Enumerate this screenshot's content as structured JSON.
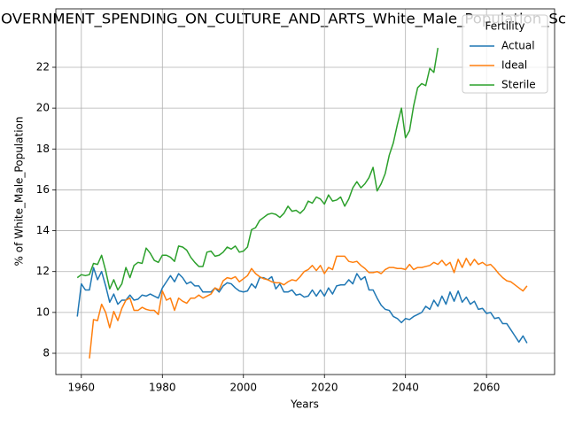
{
  "chart_data": {
    "type": "line",
    "title": "OVERNMENT_SPENDING_ON_CULTURE_AND_ARTS_White_Male_Population_Sc",
    "x_label": "Years",
    "y_label": "% of White_Male_Population",
    "legend_title": "Fertility",
    "legend": "upper right",
    "grid": true,
    "xlim": [
      1953.7,
      2076.8
    ],
    "ylim": [
      6.96,
      24.86
    ],
    "xticks": [
      1960,
      1980,
      2000,
      2020,
      2040,
      2060
    ],
    "yticks": [
      8,
      10,
      12,
      14,
      16,
      18,
      20,
      22
    ],
    "x": [
      1959,
      1960,
      1961,
      1962,
      1963,
      1964,
      1965,
      1966,
      1967,
      1968,
      1969,
      1970,
      1971,
      1972,
      1973,
      1974,
      1975,
      1976,
      1977,
      1978,
      1979,
      1980,
      1981,
      1982,
      1983,
      1984,
      1985,
      1986,
      1987,
      1988,
      1989,
      1990,
      1991,
      1992,
      1993,
      1994,
      1995,
      1996,
      1997,
      1998,
      1999,
      2000,
      2001,
      2002,
      2003,
      2004,
      2005,
      2006,
      2007,
      2008,
      2009,
      2010,
      2011,
      2012,
      2013,
      2014,
      2015,
      2016,
      2017,
      2018,
      2019,
      2020,
      2021,
      2022,
      2023,
      2024,
      2025,
      2026,
      2027,
      2028,
      2029,
      2030,
      2031,
      2032,
      2033,
      2034,
      2035,
      2036,
      2037,
      2038,
      2039,
      2040,
      2041,
      2042,
      2043,
      2044,
      2045,
      2046,
      2047,
      2048,
      2049,
      2050,
      2051,
      2052,
      2053,
      2054,
      2055,
      2056,
      2057,
      2058,
      2059,
      2060,
      2061,
      2062,
      2063,
      2064,
      2065,
      2066,
      2067,
      2068,
      2069,
      2070
    ],
    "series": [
      {
        "name": "Actual",
        "color": "#1f77b4",
        "values": [
          9.8,
          11.4,
          11.1,
          11.1,
          12.2,
          11.6,
          12.0,
          11.3,
          10.5,
          10.9,
          10.4,
          10.6,
          10.6,
          10.85,
          10.6,
          10.65,
          10.85,
          10.8,
          10.9,
          10.8,
          10.7,
          11.2,
          11.5,
          11.8,
          11.5,
          11.9,
          11.7,
          11.4,
          11.5,
          11.3,
          11.3,
          11.0,
          11.0,
          11.0,
          11.2,
          11.0,
          11.3,
          11.45,
          11.4,
          11.2,
          11.05,
          11.0,
          11.05,
          11.4,
          11.2,
          11.7,
          11.7,
          11.6,
          11.75,
          11.15,
          11.4,
          11.0,
          11.0,
          11.1,
          10.85,
          10.9,
          10.75,
          10.8,
          11.1,
          10.8,
          11.1,
          10.8,
          11.2,
          10.9,
          11.3,
          11.35,
          11.35,
          11.6,
          11.4,
          11.9,
          11.6,
          11.75,
          11.1,
          11.1,
          10.7,
          10.35,
          10.15,
          10.1,
          9.8,
          9.7,
          9.5,
          9.7,
          9.65,
          9.8,
          9.9,
          10.0,
          10.3,
          10.15,
          10.6,
          10.3,
          10.8,
          10.4,
          11.0,
          10.55,
          11.05,
          10.5,
          10.75,
          10.4,
          10.55,
          10.15,
          10.2,
          9.95,
          10.0,
          9.7,
          9.75,
          9.45,
          9.45,
          9.15,
          8.85,
          8.55,
          8.85,
          8.5
        ]
      },
      {
        "name": "Ideal",
        "color": "#ff7f0e",
        "values": [
          null,
          null,
          null,
          7.75,
          9.65,
          9.6,
          10.4,
          10.0,
          9.25,
          10.05,
          9.6,
          10.2,
          10.6,
          10.7,
          10.1,
          10.1,
          10.25,
          10.15,
          10.1,
          10.1,
          9.9,
          11.05,
          10.6,
          10.7,
          10.1,
          10.7,
          10.55,
          10.45,
          10.7,
          10.7,
          10.85,
          10.7,
          10.8,
          10.9,
          11.2,
          11.1,
          11.55,
          11.7,
          11.65,
          11.75,
          11.5,
          11.65,
          11.8,
          12.15,
          11.9,
          11.75,
          11.65,
          11.6,
          11.5,
          11.45,
          11.45,
          11.35,
          11.5,
          11.6,
          11.55,
          11.75,
          12.0,
          12.1,
          12.3,
          12.05,
          12.3,
          11.9,
          12.2,
          12.1,
          12.75,
          12.75,
          12.75,
          12.5,
          12.45,
          12.5,
          12.3,
          12.15,
          11.95,
          11.95,
          12.0,
          11.9,
          12.1,
          12.2,
          12.2,
          12.15,
          12.15,
          12.1,
          12.35,
          12.1,
          12.2,
          12.2,
          12.25,
          12.3,
          12.45,
          12.35,
          12.55,
          12.3,
          12.45,
          11.95,
          12.6,
          12.2,
          12.65,
          12.3,
          12.6,
          12.35,
          12.45,
          12.3,
          12.35,
          12.15,
          11.9,
          11.7,
          11.55,
          11.5,
          11.35,
          11.2,
          11.05,
          11.3
        ]
      },
      {
        "name": "Sterile",
        "color": "#2ca02c",
        "values": [
          11.7,
          11.85,
          11.8,
          11.85,
          12.4,
          12.35,
          12.8,
          12.05,
          11.15,
          11.6,
          11.1,
          11.4,
          12.2,
          11.7,
          12.3,
          12.45,
          12.4,
          13.15,
          12.9,
          12.55,
          12.45,
          12.8,
          12.8,
          12.7,
          12.5,
          13.25,
          13.2,
          13.05,
          12.7,
          12.45,
          12.25,
          12.25,
          12.95,
          13.0,
          12.75,
          12.8,
          12.95,
          13.2,
          13.1,
          13.25,
          12.95,
          13.0,
          13.2,
          14.05,
          14.15,
          14.5,
          14.65,
          14.8,
          14.85,
          14.8,
          14.65,
          14.85,
          15.2,
          14.95,
          15.0,
          14.85,
          15.05,
          15.45,
          15.35,
          15.65,
          15.55,
          15.3,
          15.75,
          15.45,
          15.5,
          15.65,
          15.2,
          15.55,
          16.1,
          16.4,
          16.1,
          16.3,
          16.6,
          17.1,
          15.95,
          16.3,
          16.8,
          17.7,
          18.3,
          19.2,
          20.0,
          18.55,
          18.9,
          20.1,
          21.0,
          21.2,
          21.1,
          21.95,
          21.75,
          22.95,
          null,
          null,
          null,
          null,
          null,
          null,
          null,
          null,
          null,
          null,
          null,
          null,
          null,
          null,
          null,
          null,
          null,
          null,
          null,
          null,
          null,
          null
        ]
      }
    ]
  }
}
